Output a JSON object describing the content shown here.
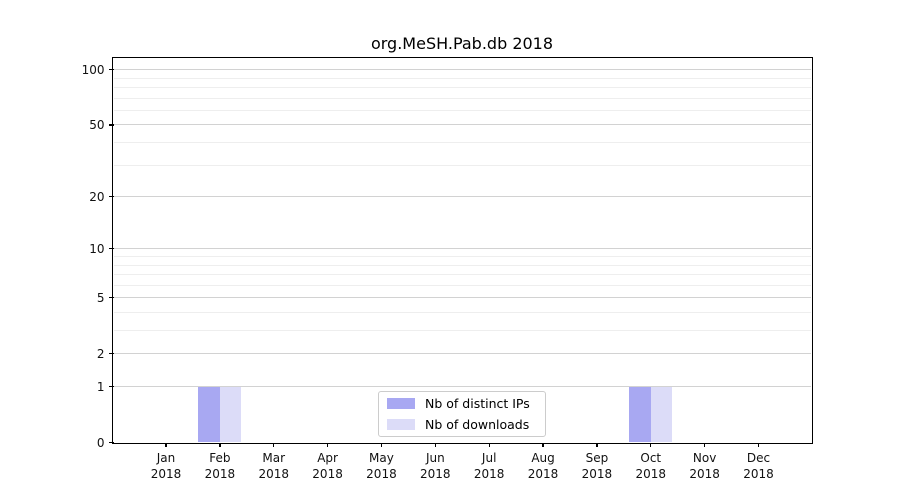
{
  "chart_data": {
    "type": "bar",
    "title": "org.MeSH.Pab.db 2018",
    "categories": [
      "Jan",
      "Feb",
      "Mar",
      "Apr",
      "May",
      "Jun",
      "Jul",
      "Aug",
      "Sep",
      "Oct",
      "Nov",
      "Dec"
    ],
    "year_label": "2018",
    "series": [
      {
        "name": "Nb of distinct IPs",
        "color": "#a8a8f2",
        "values": [
          0,
          1,
          0,
          0,
          0,
          0,
          0,
          0,
          0,
          1,
          0,
          0
        ]
      },
      {
        "name": "Nb of downloads",
        "color": "#dcdcf8",
        "values": [
          0,
          1,
          0,
          0,
          0,
          0,
          0,
          0,
          0,
          1,
          0,
          0
        ]
      }
    ],
    "y_scale": "log1p",
    "ylim": [
      0,
      115
    ],
    "y_major_ticks": [
      0,
      1,
      2,
      5,
      10,
      20,
      50,
      100
    ],
    "y_minor_gridlines": [
      3,
      4,
      6,
      7,
      8,
      9,
      30,
      40,
      60,
      70,
      80,
      90
    ],
    "grid": "horizontal",
    "legend_position": "lower center"
  }
}
